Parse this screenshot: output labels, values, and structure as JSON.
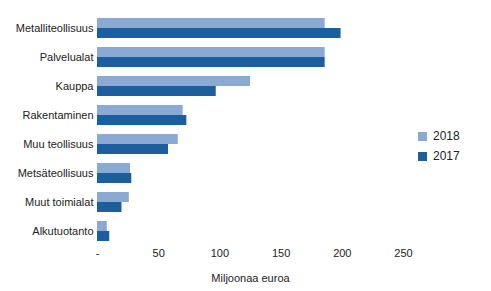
{
  "chart_data": {
    "type": "bar",
    "orientation": "horizontal",
    "categories": [
      "Metalliteollisuus",
      "Palvelualat",
      "Kauppa",
      "Rakentaminen",
      "Muu teollisuus",
      "Metsäteollisuus",
      "Muut toimialat",
      "Alkutuotanto"
    ],
    "series": [
      {
        "name": "2018",
        "color": "#8aaad3",
        "values": [
          186,
          186,
          125,
          70,
          66,
          27,
          26,
          8
        ]
      },
      {
        "name": "2017",
        "color": "#1d5e9f",
        "values": [
          199,
          186,
          97,
          73,
          58,
          28,
          20,
          10
        ]
      }
    ],
    "x_label": "Miljoonaa euroa",
    "xlim": [
      0,
      250
    ],
    "xticks": [
      {
        "value": 0,
        "label": "-"
      },
      50,
      100,
      150,
      200,
      250
    ],
    "grid": false,
    "legend": "right"
  }
}
